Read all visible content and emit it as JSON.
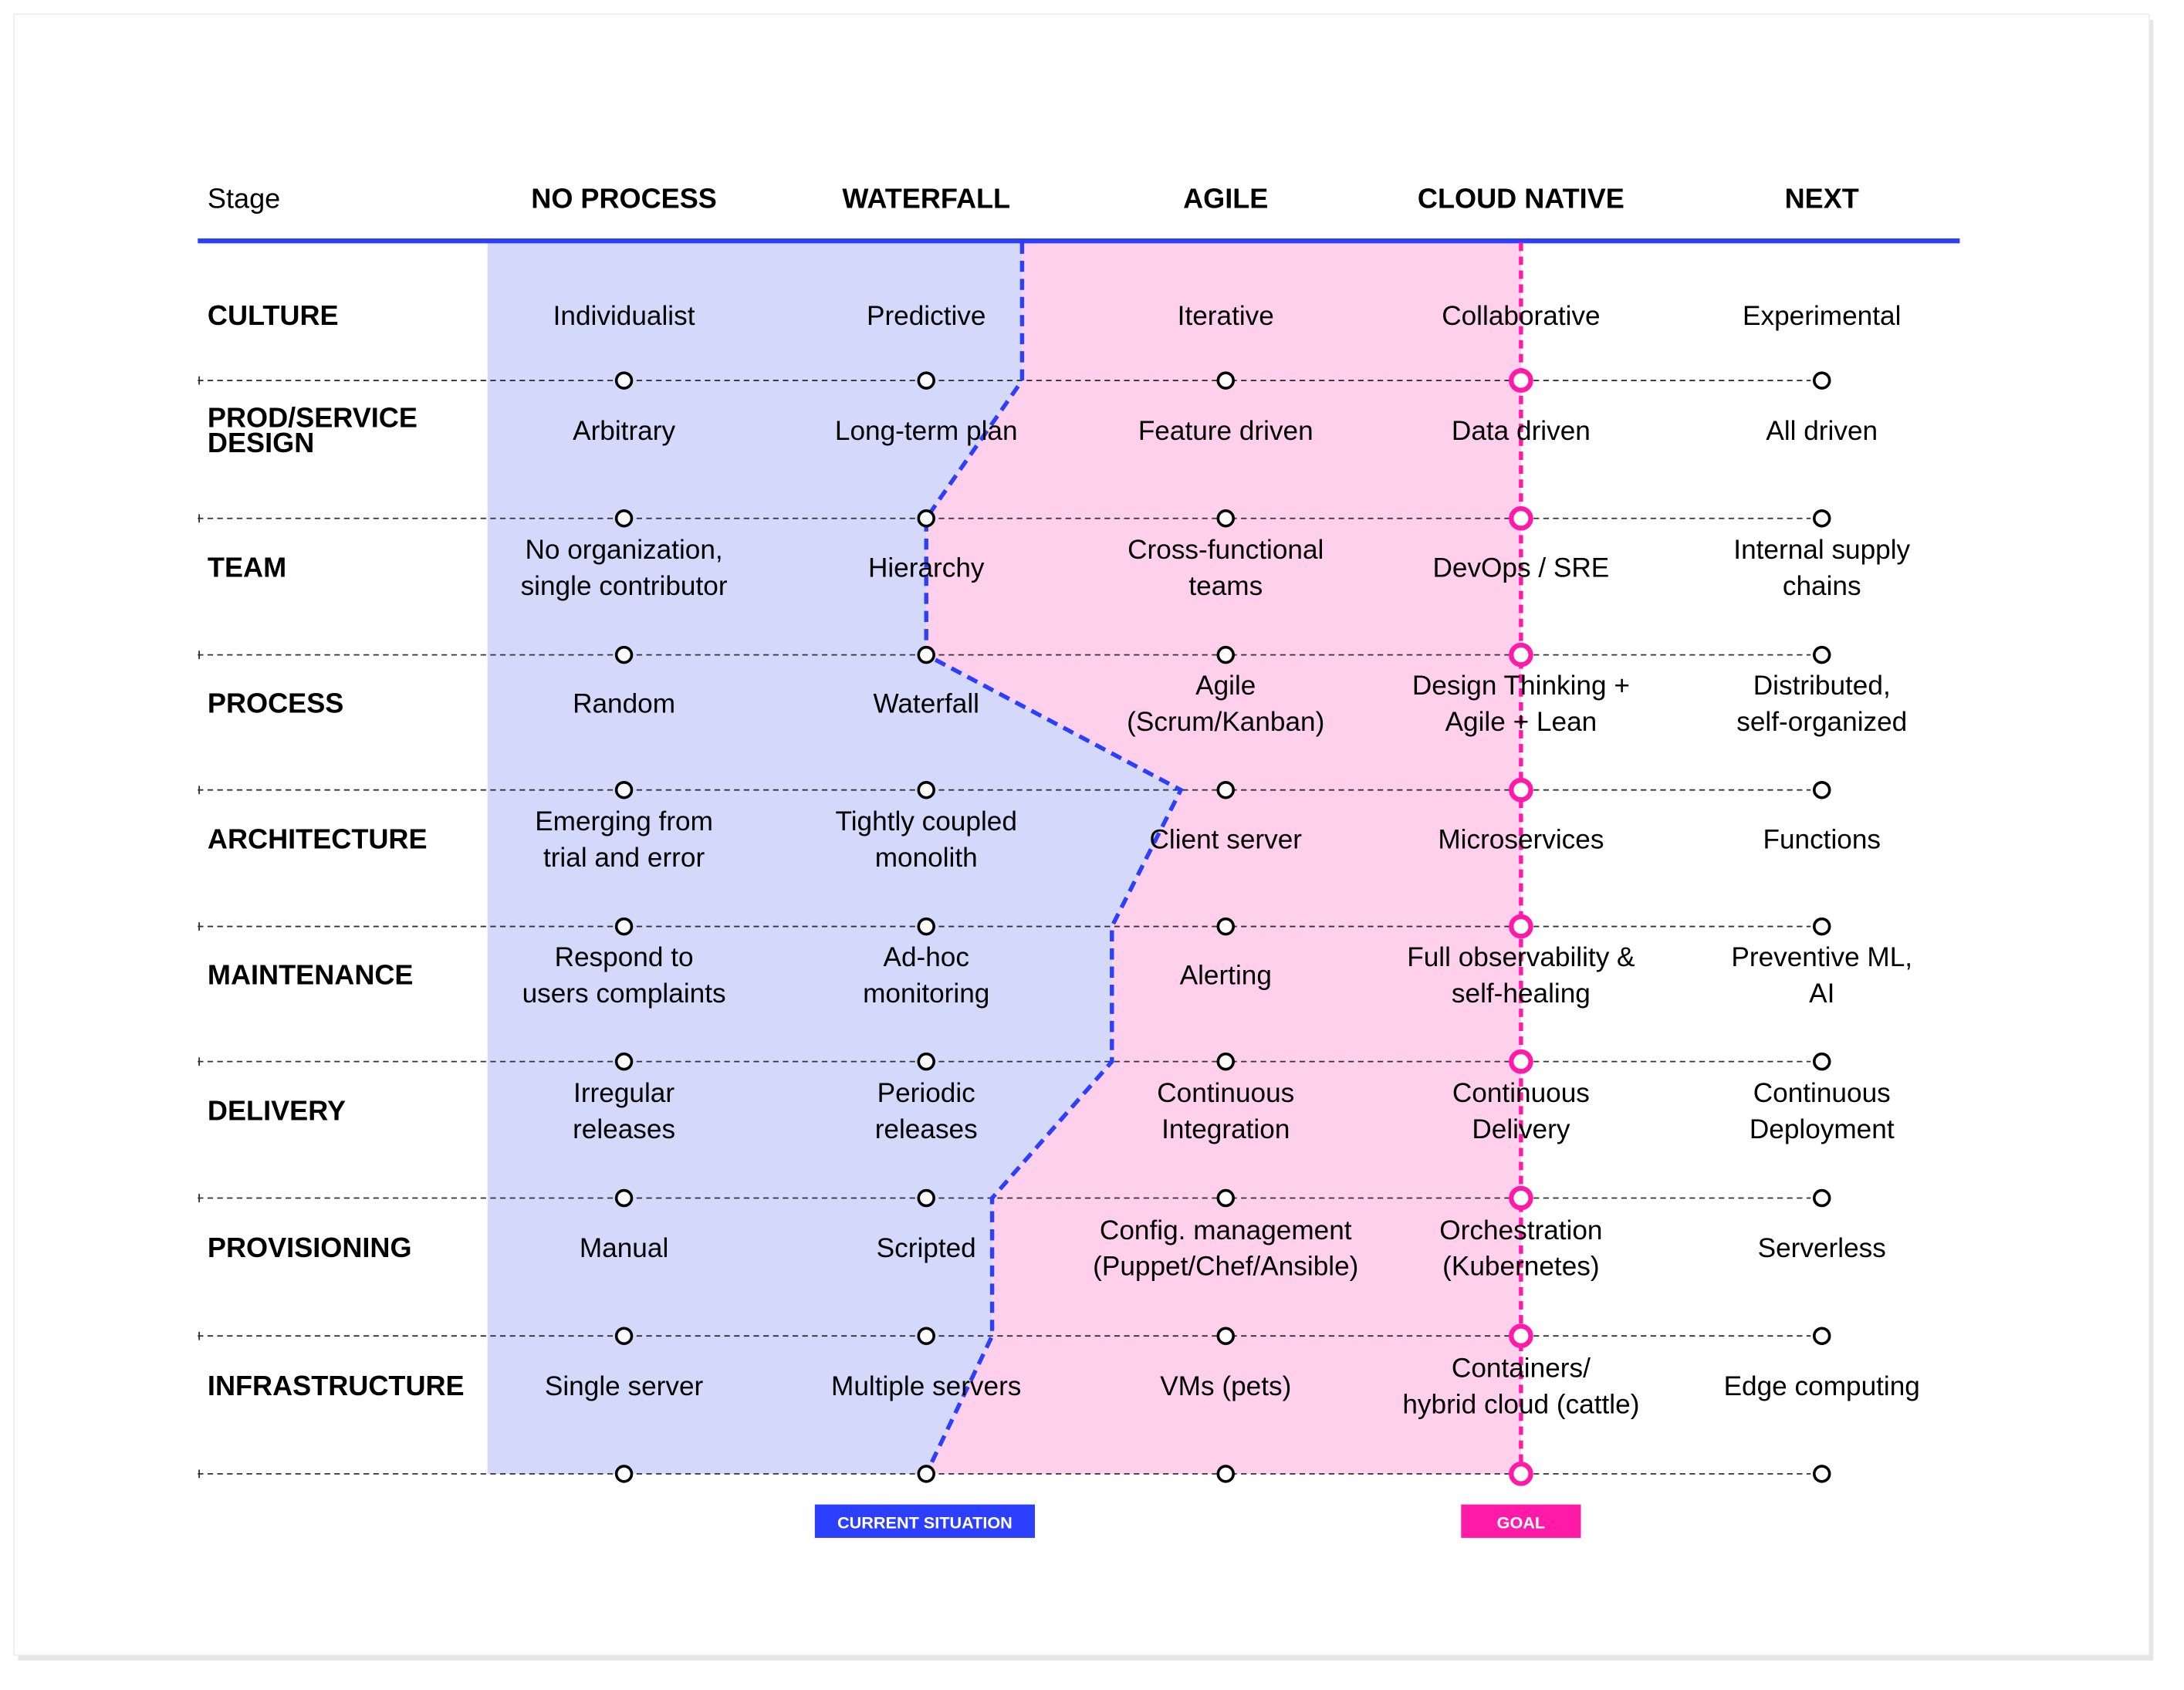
{
  "colors": {
    "blue": "#2b3ffc",
    "pink": "#ff1aa8",
    "blue_area": "#d4d9fc",
    "pink_area": "#ffd0ec"
  },
  "header": {
    "stage_label": "Stage",
    "columns": [
      "NO PROCESS",
      "WATERFALL",
      "AGILE",
      "CLOUD NATIVE",
      "NEXT"
    ]
  },
  "rows": [
    {
      "category": [
        "CULTURE"
      ],
      "cells": [
        [
          "Individualist"
        ],
        [
          "Predictive"
        ],
        [
          "Iterative"
        ],
        [
          "Collaborative"
        ],
        [
          "Experimental"
        ]
      ],
      "current_level": 2.32
    },
    {
      "category": [
        "PROD/SERVICE",
        "DESIGN"
      ],
      "cells": [
        [
          "Arbitrary"
        ],
        [
          "Long-term plan"
        ],
        [
          "Feature driven"
        ],
        [
          "Data driven"
        ],
        [
          "All driven"
        ]
      ],
      "current_level": 2.0
    },
    {
      "category": [
        "TEAM"
      ],
      "cells": [
        [
          "No organization,",
          "single contributor"
        ],
        [
          "Hierarchy"
        ],
        [
          "Cross-functional",
          "teams"
        ],
        [
          "DevOps / SRE"
        ],
        [
          "Internal supply",
          "chains"
        ]
      ],
      "current_level": 2.0
    },
    {
      "category": [
        "PROCESS"
      ],
      "cells": [
        [
          "Random"
        ],
        [
          "Waterfall"
        ],
        [
          "Agile",
          "(Scrum/Kanban)"
        ],
        [
          "Design Thinking +",
          "Agile + Lean"
        ],
        [
          "Distributed,",
          "self-organized"
        ]
      ],
      "current_level": 2.85
    },
    {
      "category": [
        "ARCHITECTURE"
      ],
      "cells": [
        [
          "Emerging from",
          "trial and error"
        ],
        [
          "Tightly coupled",
          "monolith"
        ],
        [
          "Client server"
        ],
        [
          "Microservices"
        ],
        [
          "Functions"
        ]
      ],
      "current_level": 2.62
    },
    {
      "category": [
        "MAINTENANCE"
      ],
      "cells": [
        [
          "Respond to",
          "users complaints"
        ],
        [
          "Ad-hoc",
          "monitoring"
        ],
        [
          "Alerting"
        ],
        [
          "Full observability &",
          "self-healing"
        ],
        [
          "Preventive ML,",
          "AI"
        ]
      ],
      "current_level": 2.62
    },
    {
      "category": [
        "DELIVERY"
      ],
      "cells": [
        [
          "Irregular",
          "releases"
        ],
        [
          "Periodic",
          "releases"
        ],
        [
          "Continuous",
          "Integration"
        ],
        [
          "Continuous",
          "Delivery"
        ],
        [
          "Continuous",
          "Deployment"
        ]
      ],
      "current_level": 2.22
    },
    {
      "category": [
        "PROVISIONING"
      ],
      "cells": [
        [
          "Manual"
        ],
        [
          "Scripted"
        ],
        [
          "Config. management",
          "(Puppet/Chef/Ansible)"
        ],
        [
          "Orchestration",
          "(Kubernetes)"
        ],
        [
          "Serverless"
        ]
      ],
      "current_level": 2.22
    },
    {
      "category": [
        "INFRASTRUCTURE"
      ],
      "cells": [
        [
          "Single server"
        ],
        [
          "Multiple servers"
        ],
        [
          "VMs (pets)"
        ],
        [
          "Containers/",
          "hybrid cloud (cattle)"
        ],
        [
          "Edge computing"
        ]
      ],
      "current_level": 2.0
    }
  ],
  "goal_level": 4,
  "legend": {
    "current": "CURRENT SITUATION",
    "goal": "GOAL"
  }
}
